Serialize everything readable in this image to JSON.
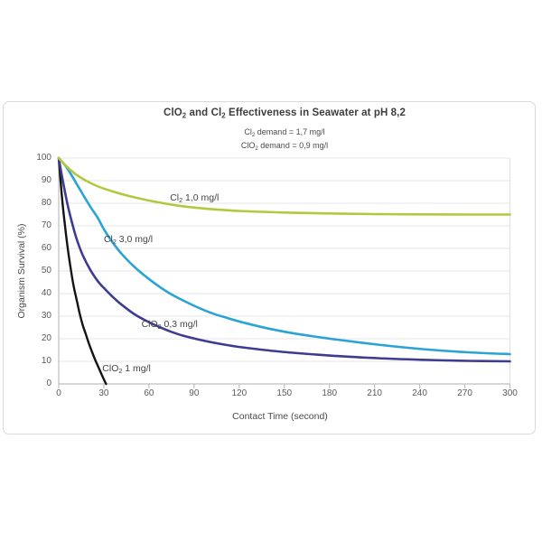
{
  "colors": {
    "panel_border": "#d7dade",
    "grid": "#e6e6e6",
    "plot_right_border": "#e0e0e0",
    "axis": "#bfbfbf",
    "title_text": "#3d3d3d",
    "tick_text": "#5a5a5a"
  },
  "chart_data": {
    "type": "line",
    "title": "ClO2 and Cl2 Effectiveness in Seawater at pH 8,2",
    "title_segments": [
      {
        "t": "ClO"
      },
      {
        "t": "2",
        "sub": true
      },
      {
        "t": " and Cl"
      },
      {
        "t": "2",
        "sub": true
      },
      {
        "t": " Effectiveness in Seawater at pH 8,2"
      }
    ],
    "subtitles": [
      {
        "text": "Cl2 demand = 1,7 mg/l",
        "segments": [
          {
            "t": "Cl"
          },
          {
            "t": "2",
            "sub": true
          },
          {
            "t": " demand = 1,7 mg/l"
          }
        ]
      },
      {
        "text": "ClO2 demand = 0,9 mg/l",
        "segments": [
          {
            "t": "ClO"
          },
          {
            "t": "2",
            "sub": true
          },
          {
            "t": " demand = 0,9 mg/l"
          }
        ]
      }
    ],
    "xlabel": "Contact Time (second)",
    "ylabel": "Organism Survival (%)",
    "xlim": [
      0,
      300
    ],
    "ylim": [
      0,
      100
    ],
    "xticks": [
      0,
      30,
      60,
      90,
      120,
      150,
      180,
      210,
      240,
      270,
      300
    ],
    "yticks": [
      0,
      10,
      20,
      30,
      40,
      50,
      60,
      70,
      80,
      90,
      100
    ],
    "grid": "horizontal-only",
    "legend_position": "inline-curve-labels",
    "series": [
      {
        "name": "ClO2 1 mg/l",
        "color": "#141414",
        "stroke_width": 2.4,
        "label_segments": [
          {
            "t": "ClO"
          },
          {
            "t": "2",
            "sub": true
          },
          {
            "t": " 1 mg/l"
          }
        ],
        "label_at": {
          "x": 29,
          "y": 7
        },
        "points": [
          [
            0,
            100
          ],
          [
            2,
            84
          ],
          [
            4,
            71
          ],
          [
            6,
            60
          ],
          [
            8,
            51
          ],
          [
            10,
            43
          ],
          [
            12,
            37
          ],
          [
            14,
            31
          ],
          [
            16,
            26
          ],
          [
            18,
            22
          ],
          [
            20,
            18
          ],
          [
            22,
            14.5
          ],
          [
            24,
            11
          ],
          [
            26,
            8
          ],
          [
            28,
            5
          ],
          [
            30,
            2
          ],
          [
            31.5,
            0
          ]
        ]
      },
      {
        "name": "ClO2 0,3 mg/l",
        "color": "#3e3c8f",
        "stroke_width": 2.6,
        "label_segments": [
          {
            "t": "ClO"
          },
          {
            "t": "2",
            "sub": true
          },
          {
            "t": " 0,3 mg/l"
          }
        ],
        "label_at": {
          "x": 55,
          "y": 26.5
        },
        "points": [
          [
            0,
            100
          ],
          [
            3,
            89
          ],
          [
            6,
            79
          ],
          [
            9,
            71
          ],
          [
            12,
            64
          ],
          [
            16,
            57
          ],
          [
            21,
            50.5
          ],
          [
            26,
            45.5
          ],
          [
            30,
            42.5
          ],
          [
            36,
            38.5
          ],
          [
            42,
            35
          ],
          [
            50,
            31
          ],
          [
            58,
            28
          ],
          [
            66,
            25.5
          ],
          [
            74,
            23.3
          ],
          [
            82,
            21.5
          ],
          [
            92,
            19.8
          ],
          [
            102,
            18.4
          ],
          [
            112,
            17.2
          ],
          [
            122,
            16.2
          ],
          [
            137,
            15
          ],
          [
            152,
            14
          ],
          [
            167,
            13.2
          ],
          [
            182,
            12.5
          ],
          [
            212,
            11.4
          ],
          [
            242,
            10.7
          ],
          [
            272,
            10.2
          ],
          [
            300,
            10
          ]
        ]
      },
      {
        "name": "Cl2 3,0 mg/l",
        "color": "#2ba4d5",
        "stroke_width": 2.6,
        "label_segments": [
          {
            "t": "Cl"
          },
          {
            "t": "2",
            "sub": true
          },
          {
            "t": " 3,0 mg/l"
          }
        ],
        "label_at": {
          "x": 30,
          "y": 64
        },
        "points": [
          [
            0,
            100
          ],
          [
            4,
            97
          ],
          [
            8,
            93
          ],
          [
            12,
            88.5
          ],
          [
            16,
            84
          ],
          [
            21,
            78.5
          ],
          [
            26,
            73.5
          ],
          [
            30,
            68.5
          ],
          [
            36,
            62.5
          ],
          [
            42,
            57.5
          ],
          [
            50,
            52
          ],
          [
            58,
            47.5
          ],
          [
            66,
            43.5
          ],
          [
            74,
            40
          ],
          [
            82,
            37.2
          ],
          [
            92,
            34
          ],
          [
            102,
            31.3
          ],
          [
            112,
            29.2
          ],
          [
            122,
            27.3
          ],
          [
            137,
            24.9
          ],
          [
            152,
            22.9
          ],
          [
            167,
            21.3
          ],
          [
            182,
            19.9
          ],
          [
            212,
            17.4
          ],
          [
            242,
            15.4
          ],
          [
            272,
            14
          ],
          [
            300,
            13.2
          ]
        ]
      },
      {
        "name": "Cl2 1,0 mg/l",
        "color": "#b2c93f",
        "stroke_width": 2.6,
        "label_segments": [
          {
            "t": "Cl"
          },
          {
            "t": "2",
            "sub": true
          },
          {
            "t": " 1,0 mg/l"
          }
        ],
        "label_at": {
          "x": 74,
          "y": 82.5
        },
        "points": [
          [
            0,
            100
          ],
          [
            5,
            96.5
          ],
          [
            10,
            93.5
          ],
          [
            15,
            91.2
          ],
          [
            21,
            89
          ],
          [
            30,
            86.5
          ],
          [
            45,
            83.5
          ],
          [
            60,
            81.2
          ],
          [
            80,
            78.9
          ],
          [
            100,
            77.5
          ],
          [
            120,
            76.6
          ],
          [
            150,
            75.9
          ],
          [
            180,
            75.5
          ],
          [
            210,
            75.2
          ],
          [
            240,
            75.1
          ],
          [
            270,
            75
          ],
          [
            300,
            75
          ]
        ]
      }
    ]
  }
}
